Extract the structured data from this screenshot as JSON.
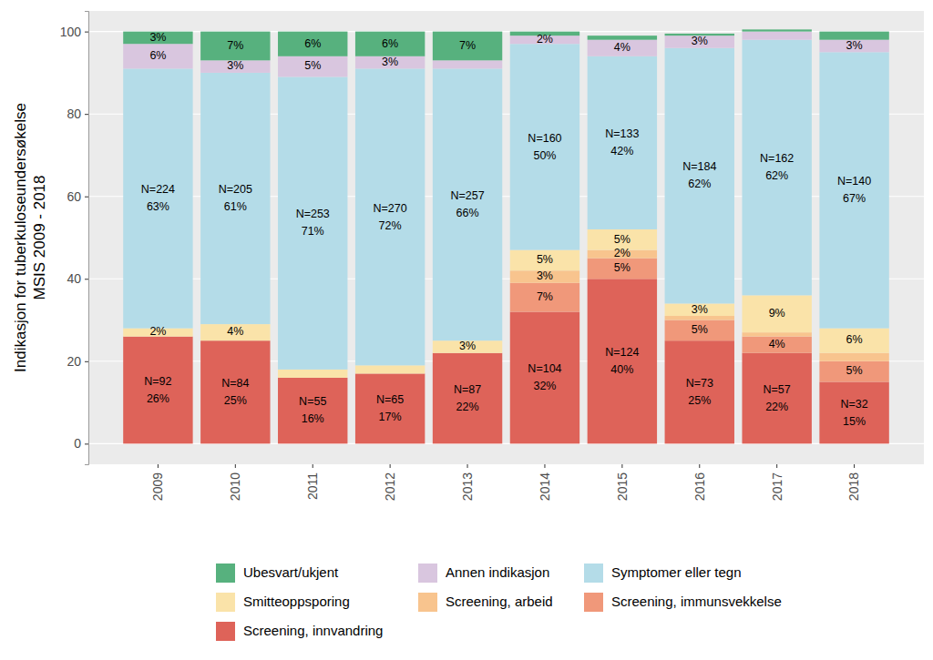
{
  "chart_data": {
    "type": "bar",
    "stacked": true,
    "data_labels": true,
    "grid": true,
    "legend": "bottom",
    "y_label": "Indikasjon for tuberkuloseundersøkelse\nMSIS 2009 - 2018",
    "categories": [
      "2009",
      "2010",
      "2011",
      "2012",
      "2013",
      "2014",
      "2015",
      "2016",
      "2017",
      "2018"
    ],
    "ylim": [
      -5,
      105
    ],
    "yticks": [
      0,
      20,
      40,
      60,
      80,
      100
    ],
    "series": [
      {
        "name": "Screening, innvandring",
        "color": "#DE6359",
        "values": [
          26,
          25,
          16,
          17,
          22,
          32,
          40,
          25,
          22,
          15
        ],
        "value_labels": [
          "26%",
          "25%",
          "16%",
          "17%",
          "22%",
          "32%",
          "40%",
          "25%",
          "22%",
          "15%"
        ],
        "count_labels": [
          "N=92",
          "N=84",
          "N=55",
          "N=65",
          "N=87",
          "N=104",
          "N=124",
          "N=73",
          "N=57",
          "N=32"
        ]
      },
      {
        "name": "Screening, immunsvekkelse",
        "color": "#F0987A",
        "values": [
          0,
          0,
          0,
          0,
          0,
          7,
          5,
          5,
          4,
          5
        ],
        "value_labels": [
          null,
          null,
          null,
          null,
          null,
          "7%",
          "5%",
          "5%",
          "4%",
          "5%"
        ]
      },
      {
        "name": "Screening, arbeid",
        "color": "#F8C48E",
        "values": [
          0,
          0,
          0,
          0,
          0,
          3,
          2,
          1,
          1,
          2
        ],
        "value_labels": [
          null,
          null,
          null,
          null,
          null,
          "3%",
          "2%",
          null,
          null,
          null
        ]
      },
      {
        "name": "Smitteoppsporing",
        "color": "#FAE3A9",
        "values": [
          2,
          4,
          2,
          2,
          3,
          5,
          5,
          3,
          9,
          6
        ],
        "value_labels": [
          "2%",
          "4%",
          null,
          null,
          "3%",
          "5%",
          "5%",
          "3%",
          "9%",
          "6%"
        ]
      },
      {
        "name": "Symptomer eller tegn",
        "color": "#B4DCE8",
        "values": [
          63,
          61,
          71,
          72,
          66,
          50,
          42,
          62,
          62,
          67
        ],
        "value_labels": [
          "63%",
          "61%",
          "71%",
          "72%",
          "66%",
          "50%",
          "42%",
          "62%",
          "62%",
          "67%"
        ],
        "count_labels": [
          "N=224",
          "N=205",
          "N=253",
          "N=270",
          "N=257",
          "N=160",
          "N=133",
          "N=184",
          "N=162",
          "N=140"
        ]
      },
      {
        "name": "Annen indikasjon",
        "color": "#D9C6DF",
        "values": [
          6,
          3,
          5,
          3,
          2,
          2,
          4,
          3,
          2,
          3
        ],
        "value_labels": [
          "6%",
          "3%",
          "5%",
          "3%",
          null,
          "2%",
          "4%",
          "3%",
          null,
          "3%"
        ]
      },
      {
        "name": "Ubesvart/ukjent",
        "color": "#57B17E",
        "values": [
          3,
          7,
          6,
          6,
          7,
          1,
          1,
          0.5,
          0.5,
          2
        ],
        "value_labels": [
          "3%",
          "7%",
          "6%",
          "6%",
          "7%",
          null,
          null,
          null,
          null,
          null
        ]
      }
    ]
  }
}
